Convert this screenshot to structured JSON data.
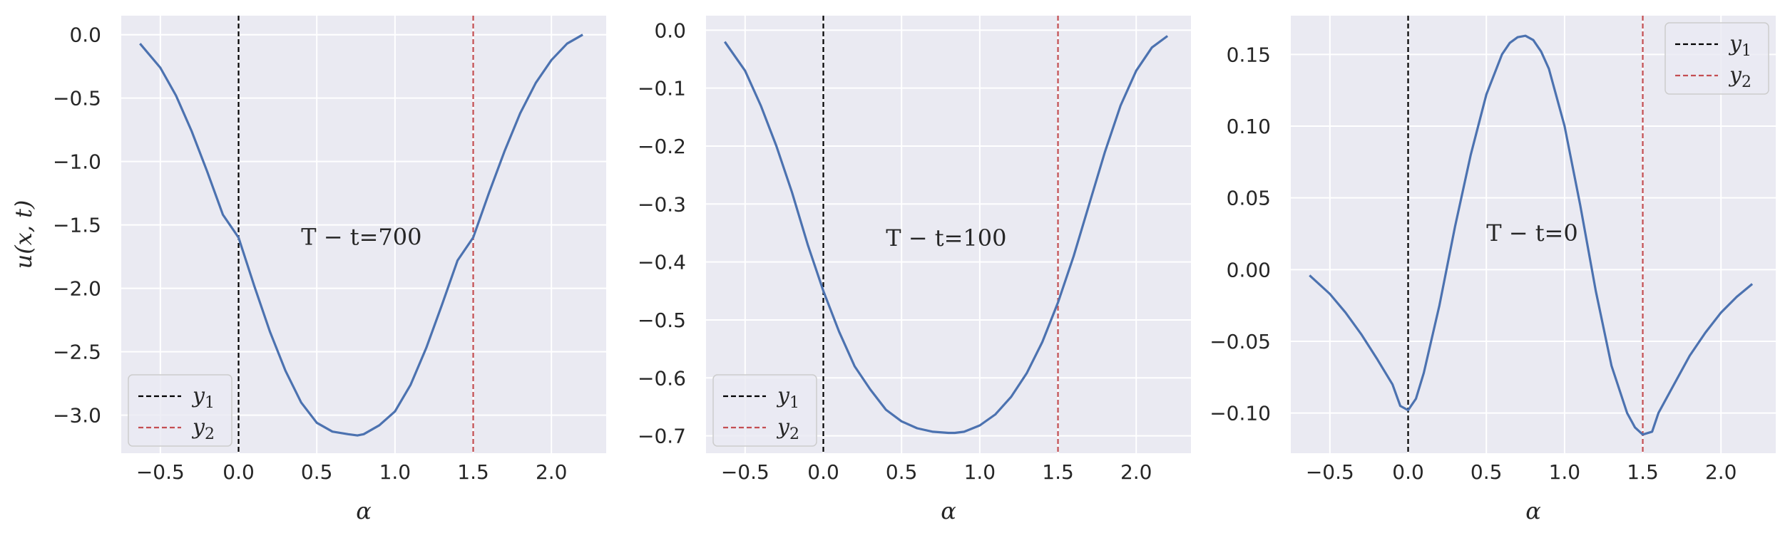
{
  "chart_data": [
    {
      "type": "line",
      "xlabel": "α",
      "ylabel": "u(x, t)",
      "annotation": "T − t=700",
      "annotation_pos": [
        0.4,
        -1.6
      ],
      "xlim": [
        -0.75,
        2.35
      ],
      "ylim": [
        -3.3,
        0.15
      ],
      "xticks": [
        -0.5,
        0.0,
        0.5,
        1.0,
        1.5,
        2.0
      ],
      "xtick_labels": [
        "−0.5",
        "0.0",
        "0.5",
        "1.0",
        "1.5",
        "2.0"
      ],
      "yticks": [
        0.0,
        -0.5,
        -1.0,
        -1.5,
        -2.0,
        -2.5,
        -3.0
      ],
      "ytick_labels": [
        "0.0",
        "−0.5",
        "−1.0",
        "−1.5",
        "−2.0",
        "−2.5",
        "−3.0"
      ],
      "legend_position": "lower-left",
      "grid": true,
      "vlines": [
        {
          "name": "y₁",
          "x": 0.0,
          "color": "#000000"
        },
        {
          "name": "y₂",
          "x": 1.5,
          "color": "#c44e52"
        }
      ],
      "series": [
        {
          "color": "#4c72b0",
          "x": [
            -0.63,
            -0.5,
            -0.4,
            -0.3,
            -0.2,
            -0.1,
            0.0,
            0.1,
            0.2,
            0.3,
            0.4,
            0.5,
            0.6,
            0.7,
            0.76,
            0.8,
            0.9,
            1.0,
            1.1,
            1.2,
            1.3,
            1.4,
            1.5,
            1.6,
            1.7,
            1.8,
            1.9,
            2.0,
            2.1,
            2.2
          ],
          "y": [
            -0.07,
            -0.26,
            -0.48,
            -0.76,
            -1.08,
            -1.42,
            -1.6,
            -1.98,
            -2.34,
            -2.65,
            -2.9,
            -3.06,
            -3.13,
            -3.15,
            -3.16,
            -3.15,
            -3.08,
            -2.97,
            -2.76,
            -2.47,
            -2.13,
            -1.78,
            -1.6,
            -1.25,
            -0.92,
            -0.62,
            -0.38,
            -0.2,
            -0.07,
            0.0
          ]
        }
      ]
    },
    {
      "type": "line",
      "xlabel": "α",
      "ylabel": "",
      "annotation": "T − t=100",
      "annotation_pos": [
        0.4,
        -0.36
      ],
      "xlim": [
        -0.75,
        2.35
      ],
      "ylim": [
        -0.73,
        0.025
      ],
      "xticks": [
        -0.5,
        0.0,
        0.5,
        1.0,
        1.5,
        2.0
      ],
      "xtick_labels": [
        "−0.5",
        "0.0",
        "0.5",
        "1.0",
        "1.5",
        "2.0"
      ],
      "yticks": [
        0.0,
        -0.1,
        -0.2,
        -0.3,
        -0.4,
        -0.5,
        -0.6,
        -0.7
      ],
      "ytick_labels": [
        "0.0",
        "−0.1",
        "−0.2",
        "−0.3",
        "−0.4",
        "−0.5",
        "−0.6",
        "−0.7"
      ],
      "legend_position": "lower-left",
      "grid": true,
      "vlines": [
        {
          "name": "y₁",
          "x": 0.0,
          "color": "#000000"
        },
        {
          "name": "y₂",
          "x": 1.5,
          "color": "#c44e52"
        }
      ],
      "series": [
        {
          "color": "#4c72b0",
          "x": [
            -0.63,
            -0.5,
            -0.4,
            -0.3,
            -0.2,
            -0.1,
            0.0,
            0.1,
            0.2,
            0.3,
            0.4,
            0.5,
            0.6,
            0.7,
            0.8,
            0.84,
            0.9,
            1.0,
            1.1,
            1.2,
            1.3,
            1.4,
            1.5,
            1.6,
            1.7,
            1.8,
            1.9,
            2.0,
            2.1,
            2.2
          ],
          "y": [
            -0.02,
            -0.07,
            -0.13,
            -0.2,
            -0.28,
            -0.37,
            -0.45,
            -0.52,
            -0.58,
            -0.62,
            -0.655,
            -0.675,
            -0.687,
            -0.693,
            -0.695,
            -0.695,
            -0.693,
            -0.682,
            -0.663,
            -0.633,
            -0.592,
            -0.538,
            -0.47,
            -0.39,
            -0.3,
            -0.21,
            -0.13,
            -0.07,
            -0.03,
            -0.01
          ]
        }
      ]
    },
    {
      "type": "line",
      "xlabel": "α",
      "ylabel": "",
      "annotation": "T − t=0",
      "annotation_pos": [
        0.5,
        0.025
      ],
      "xlim": [
        -0.75,
        2.35
      ],
      "ylim": [
        -0.128,
        0.177
      ],
      "xticks": [
        -0.5,
        0.0,
        0.5,
        1.0,
        1.5,
        2.0
      ],
      "xtick_labels": [
        "−0.5",
        "0.0",
        "0.5",
        "1.0",
        "1.5",
        "2.0"
      ],
      "yticks": [
        0.15,
        0.1,
        0.05,
        0.0,
        -0.05,
        -0.1
      ],
      "ytick_labels": [
        "0.15",
        "0.10",
        "0.05",
        "0.00",
        "−0.05",
        "−0.10"
      ],
      "legend_position": "upper-right",
      "grid": true,
      "vlines": [
        {
          "name": "y₁",
          "x": 0.0,
          "color": "#000000"
        },
        {
          "name": "y₂",
          "x": 1.5,
          "color": "#c44e52"
        }
      ],
      "series": [
        {
          "color": "#4c72b0",
          "x": [
            -0.63,
            -0.5,
            -0.4,
            -0.3,
            -0.2,
            -0.1,
            -0.05,
            0.0,
            0.05,
            0.1,
            0.2,
            0.3,
            0.4,
            0.5,
            0.6,
            0.65,
            0.7,
            0.75,
            0.8,
            0.85,
            0.9,
            0.95,
            1.0,
            1.1,
            1.2,
            1.3,
            1.4,
            1.45,
            1.5,
            1.56,
            1.6,
            1.7,
            1.8,
            1.9,
            2.0,
            2.1,
            2.2
          ],
          "y": [
            -0.004,
            -0.017,
            -0.03,
            -0.045,
            -0.062,
            -0.08,
            -0.095,
            -0.098,
            -0.09,
            -0.072,
            -0.025,
            0.03,
            0.08,
            0.122,
            0.15,
            0.158,
            0.162,
            0.163,
            0.16,
            0.152,
            0.14,
            0.12,
            0.1,
            0.045,
            -0.015,
            -0.067,
            -0.1,
            -0.11,
            -0.115,
            -0.113,
            -0.1,
            -0.08,
            -0.06,
            -0.044,
            -0.03,
            -0.019,
            -0.01
          ]
        }
      ]
    }
  ]
}
